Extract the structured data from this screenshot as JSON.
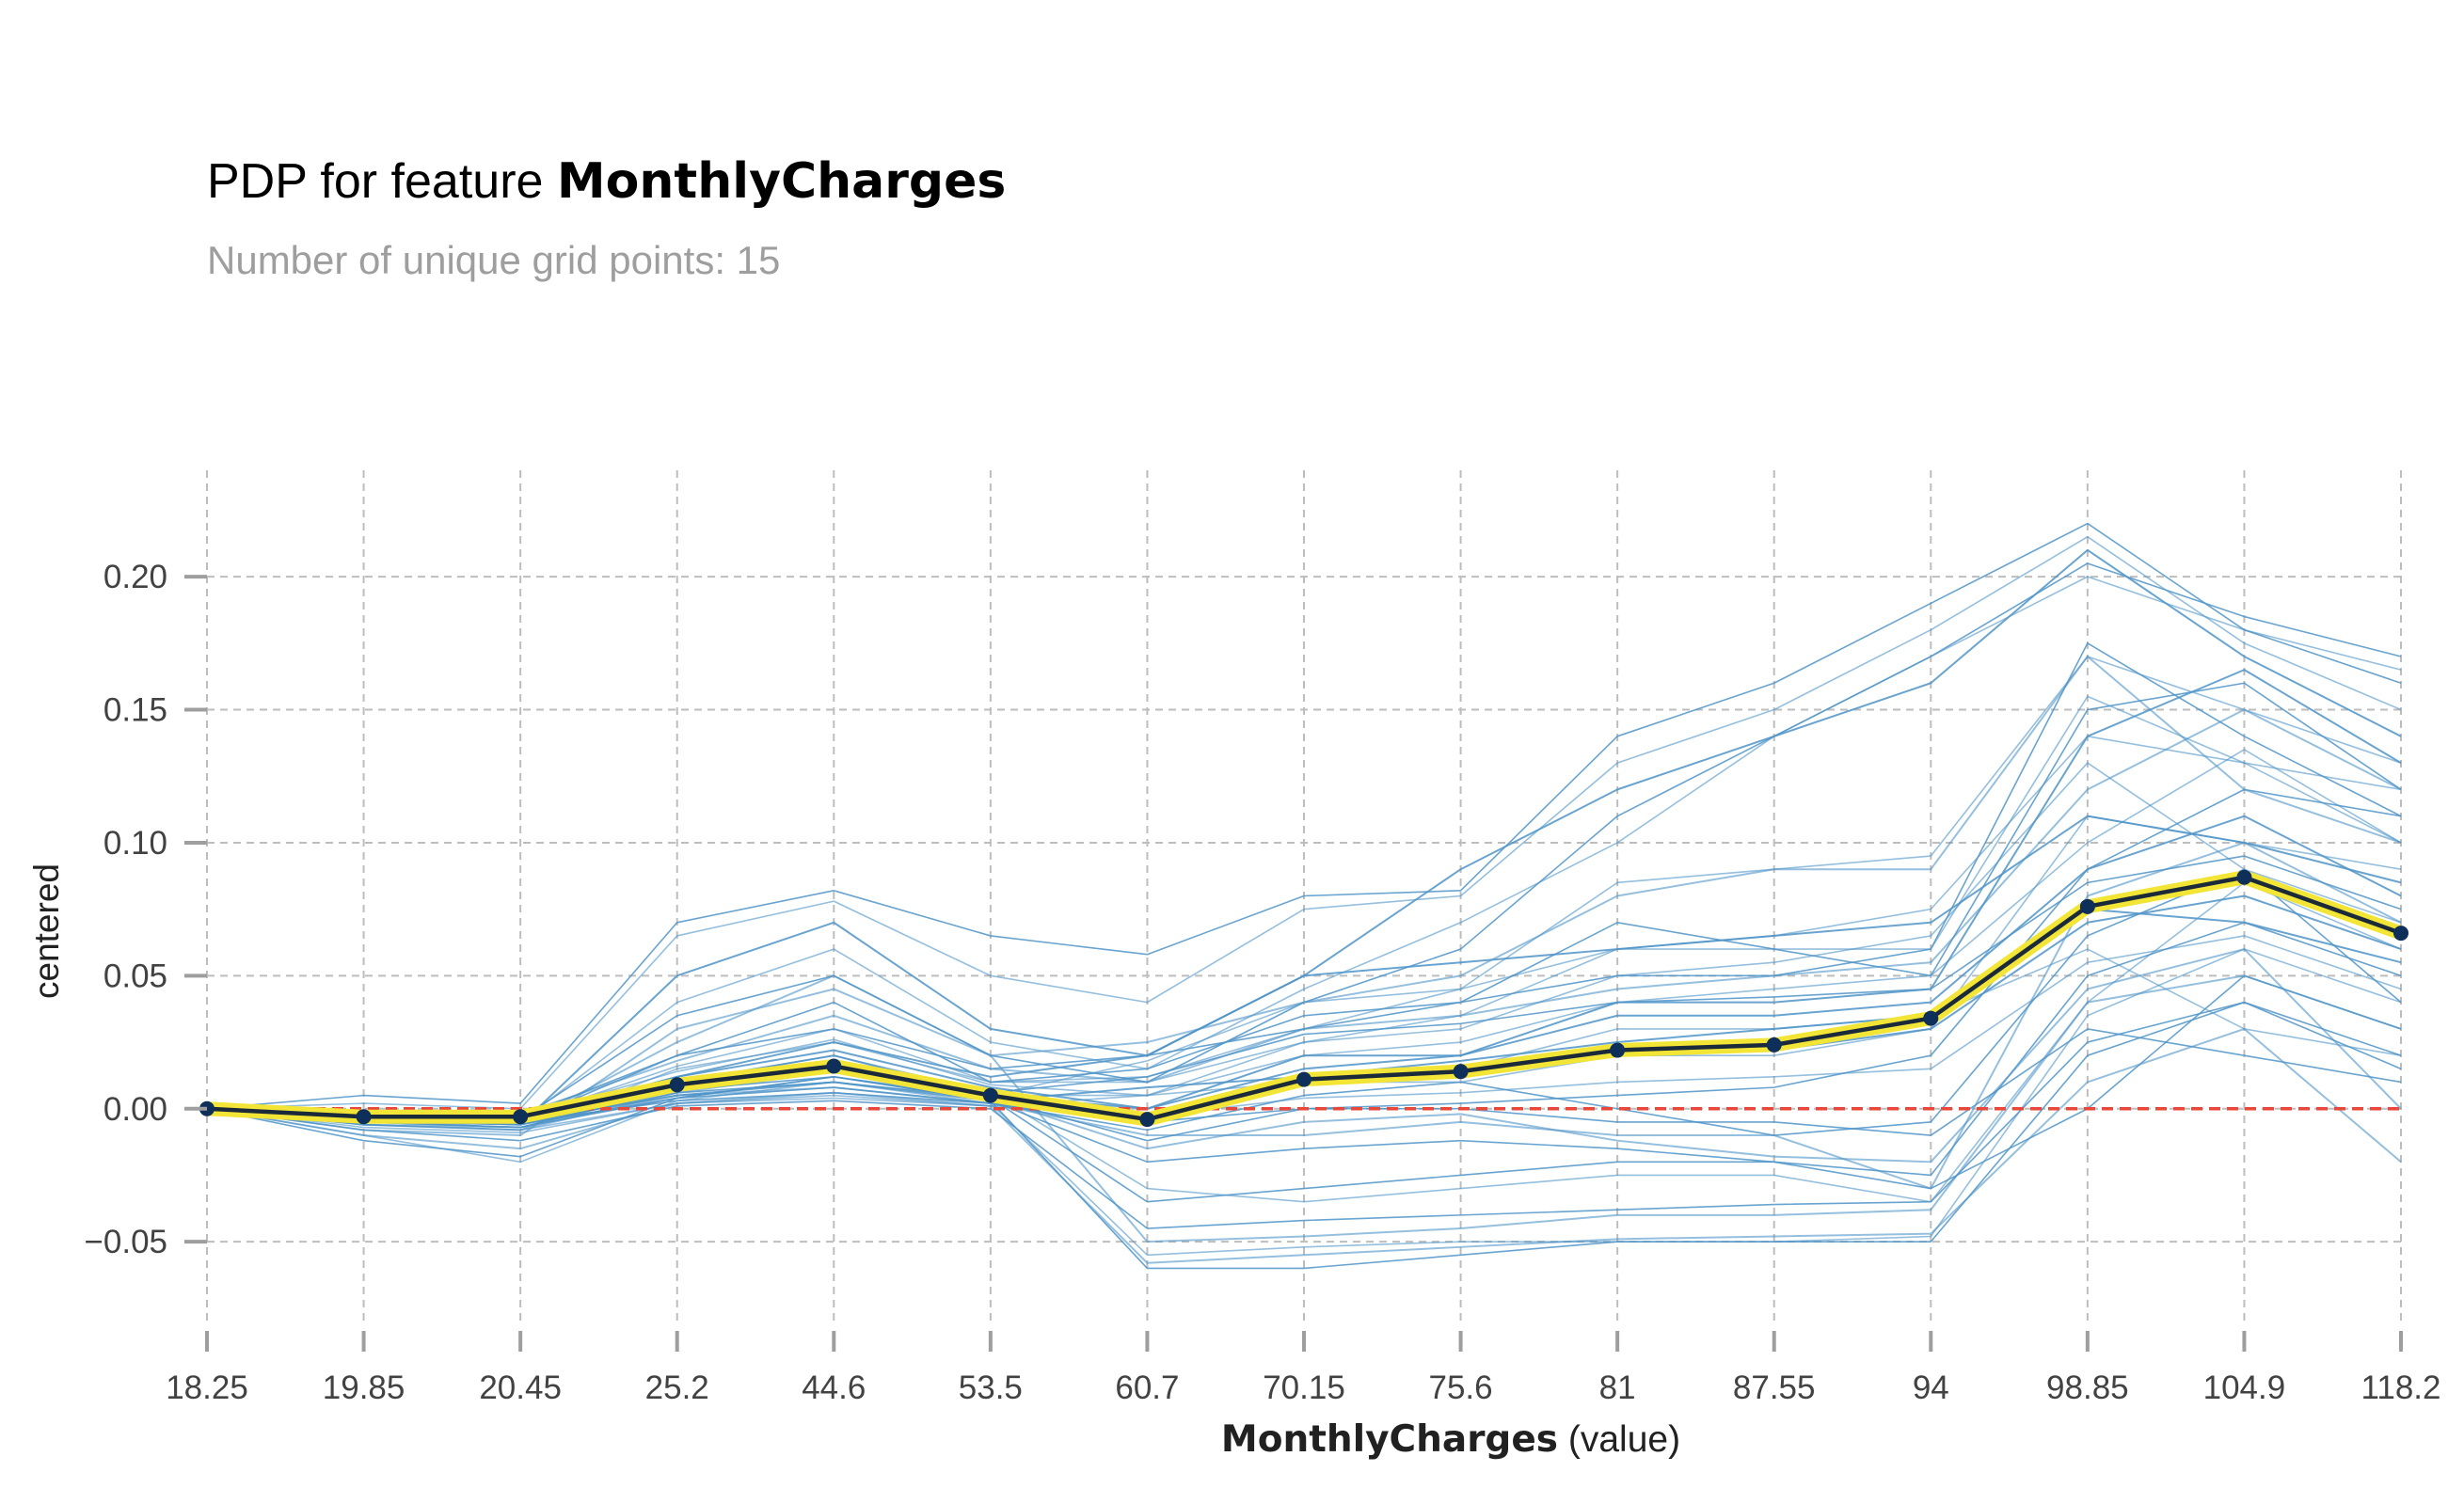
{
  "chart_data": {
    "type": "line",
    "title_prefix": "PDP for feature ",
    "title_feature": "MonthlyCharges",
    "subtitle": "Number of unique grid points: 15",
    "xlabel_bold": "MonthlyCharges",
    "xlabel_suffix": " (value)",
    "ylabel": "centered",
    "categories": [
      "18.25",
      "19.85",
      "20.45",
      "25.2",
      "44.6",
      "53.5",
      "60.7",
      "70.15",
      "75.6",
      "81",
      "87.55",
      "94",
      "98.85",
      "104.9",
      "118.2"
    ],
    "ylim": [
      -0.08,
      0.24
    ],
    "yticks": [
      -0.05,
      0.0,
      0.05,
      0.1,
      0.15,
      0.2
    ],
    "ytick_labels": [
      "−0.05",
      "0.00",
      "0.05",
      "0.10",
      "0.15",
      "0.20"
    ],
    "grid": true,
    "series": [
      {
        "role": "pdp",
        "values": [
          0.0,
          -0.003,
          -0.003,
          0.009,
          0.016,
          0.005,
          -0.004,
          0.011,
          0.014,
          0.022,
          0.024,
          0.034,
          0.076,
          0.087,
          0.066
        ]
      },
      {
        "role": "reference",
        "values": [
          0,
          0,
          0,
          0,
          0,
          0,
          0,
          0,
          0,
          0,
          0,
          0,
          0,
          0,
          0
        ]
      }
    ],
    "ice_lines": [
      [
        0,
        -0.005,
        -0.005,
        0.008,
        0.015,
        0.004,
        -0.002,
        0.012,
        0.015,
        0.02,
        0.022,
        0.03,
        0.07,
        0.08,
        0.06
      ],
      [
        0,
        -0.01,
        -0.02,
        0.003,
        0.01,
        0.002,
        -0.055,
        -0.052,
        -0.05,
        -0.05,
        -0.05,
        -0.048,
        0.035,
        0.06,
        0.04
      ],
      [
        0,
        -0.012,
        -0.018,
        0.004,
        0.012,
        0.003,
        -0.06,
        -0.06,
        -0.055,
        -0.05,
        -0.05,
        -0.05,
        0.02,
        0.04,
        0.02
      ],
      [
        0,
        -0.008,
        -0.01,
        0.03,
        0.045,
        0.02,
        -0.05,
        -0.048,
        -0.045,
        -0.04,
        -0.04,
        -0.038,
        0.04,
        0.05,
        0.03
      ],
      [
        0,
        0.005,
        0.002,
        0.07,
        0.082,
        0.065,
        0.058,
        0.08,
        0.082,
        0.14,
        0.16,
        0.19,
        0.22,
        0.18,
        0.16
      ],
      [
        0,
        0.002,
        0.0,
        0.065,
        0.078,
        0.05,
        0.04,
        0.075,
        0.08,
        0.13,
        0.15,
        0.18,
        0.215,
        0.175,
        0.15
      ],
      [
        0,
        -0.004,
        -0.006,
        0.05,
        0.07,
        0.03,
        0.02,
        0.05,
        0.09,
        0.12,
        0.14,
        0.16,
        0.21,
        0.17,
        0.14
      ],
      [
        0,
        -0.003,
        -0.005,
        0.04,
        0.06,
        0.025,
        0.015,
        0.045,
        0.07,
        0.1,
        0.14,
        0.17,
        0.2,
        0.18,
        0.165
      ],
      [
        0,
        -0.002,
        -0.004,
        0.035,
        0.05,
        0.02,
        0.01,
        0.04,
        0.06,
        0.11,
        0.14,
        0.17,
        0.205,
        0.185,
        0.17
      ],
      [
        0,
        -0.003,
        -0.006,
        0.025,
        0.05,
        0.02,
        0.025,
        0.04,
        0.05,
        0.08,
        0.09,
        0.09,
        0.17,
        0.12,
        0.1
      ],
      [
        0,
        -0.004,
        -0.005,
        0.02,
        0.03,
        0.015,
        0.02,
        0.03,
        0.04,
        0.07,
        0.06,
        0.05,
        0.15,
        0.16,
        0.12
      ],
      [
        0,
        -0.006,
        -0.008,
        0.015,
        0.025,
        0.01,
        0.01,
        0.025,
        0.035,
        0.06,
        0.06,
        0.06,
        0.155,
        0.13,
        0.1
      ],
      [
        0,
        -0.002,
        -0.003,
        0.01,
        0.02,
        0.005,
        0.0,
        0.02,
        0.02,
        0.04,
        0.04,
        0.045,
        0.14,
        0.165,
        0.13
      ],
      [
        0,
        -0.003,
        -0.004,
        0.008,
        0.018,
        0.006,
        -0.005,
        0.01,
        0.01,
        0.02,
        0.02,
        0.03,
        0.11,
        0.1,
        0.09
      ],
      [
        0,
        -0.004,
        -0.006,
        0.006,
        0.01,
        0.004,
        -0.012,
        0.0,
        0.002,
        0.005,
        0.008,
        0.02,
        0.09,
        0.12,
        0.11
      ],
      [
        0,
        -0.006,
        -0.007,
        0.005,
        0.008,
        0.002,
        -0.01,
        -0.01,
        -0.005,
        -0.01,
        -0.01,
        -0.03,
        0.08,
        0.1,
        0.07
      ],
      [
        0,
        -0.005,
        -0.006,
        0.004,
        0.012,
        0.003,
        -0.02,
        -0.015,
        -0.012,
        -0.015,
        -0.02,
        -0.03,
        0.0,
        0.05,
        0.03
      ],
      [
        0,
        -0.007,
        -0.009,
        0.002,
        0.005,
        0.001,
        0.005,
        0.01,
        0.015,
        0.03,
        0.03,
        0.035,
        0.06,
        0.03,
        0.02
      ],
      [
        0,
        -0.003,
        -0.004,
        0.012,
        0.022,
        0.008,
        0.0,
        0.015,
        0.02,
        0.035,
        0.035,
        0.04,
        0.09,
        0.11,
        0.08
      ],
      [
        0,
        -0.002,
        -0.003,
        0.014,
        0.026,
        0.009,
        0.005,
        0.02,
        0.025,
        0.04,
        0.045,
        0.05,
        0.1,
        0.135,
        0.1
      ],
      [
        0,
        -0.004,
        -0.005,
        0.003,
        0.006,
        0.002,
        -0.005,
        0.0,
        0.0,
        -0.005,
        -0.005,
        -0.01,
        0.03,
        0.02,
        0.01
      ],
      [
        0,
        -0.001,
        -0.002,
        0.018,
        0.035,
        0.015,
        0.01,
        0.03,
        0.035,
        0.045,
        0.05,
        0.055,
        0.12,
        0.15,
        0.12
      ],
      [
        0,
        -0.005,
        -0.007,
        0.007,
        0.012,
        0.004,
        -0.035,
        -0.03,
        -0.025,
        -0.02,
        -0.02,
        -0.025,
        0.05,
        0.07,
        0.05
      ],
      [
        0,
        -0.004,
        -0.006,
        0.01,
        0.02,
        0.006,
        -0.03,
        -0.035,
        -0.03,
        -0.025,
        -0.025,
        -0.035,
        0.04,
        0.085,
        0.06
      ],
      [
        0,
        -0.003,
        -0.004,
        0.012,
        0.025,
        0.012,
        0.02,
        0.05,
        0.055,
        0.06,
        0.065,
        0.07,
        0.11,
        0.1,
        0.085
      ],
      [
        0,
        -0.002,
        -0.002,
        0.009,
        0.016,
        0.005,
        0.005,
        0.025,
        0.03,
        0.05,
        0.055,
        0.065,
        0.13,
        0.09,
        0.07
      ],
      [
        0,
        -0.005,
        -0.007,
        0.004,
        0.008,
        0.002,
        -0.008,
        0.005,
        0.01,
        0.0,
        -0.01,
        -0.005,
        0.065,
        0.09,
        0.04
      ],
      [
        0,
        -0.006,
        -0.008,
        0.006,
        0.014,
        0.004,
        -0.015,
        -0.005,
        -0.002,
        -0.012,
        -0.018,
        -0.02,
        0.045,
        0.06,
        0.0
      ],
      [
        0,
        -0.002,
        -0.003,
        0.02,
        0.04,
        0.01,
        0.015,
        0.035,
        0.04,
        0.05,
        0.05,
        0.06,
        0.175,
        0.14,
        0.11
      ],
      [
        0,
        -0.003,
        -0.004,
        0.016,
        0.03,
        0.01,
        0.012,
        0.03,
        0.045,
        0.085,
        0.09,
        0.095,
        0.17,
        0.15,
        0.13
      ],
      [
        0,
        -0.004,
        -0.005,
        0.005,
        0.01,
        0.003,
        0.008,
        0.012,
        0.018,
        0.025,
        0.03,
        0.035,
        0.075,
        0.07,
        0.055
      ],
      [
        0,
        -0.006,
        -0.008,
        0.002,
        0.004,
        0.001,
        -0.003,
        0.004,
        0.006,
        0.01,
        0.012,
        0.015,
        0.055,
        0.065,
        0.045
      ],
      [
        0,
        -0.008,
        -0.012,
        0.001,
        0.003,
        0.0,
        -0.045,
        -0.042,
        -0.04,
        -0.038,
        -0.036,
        -0.035,
        0.025,
        0.04,
        0.015
      ],
      [
        0,
        -0.01,
        -0.015,
        0.002,
        0.006,
        0.001,
        -0.058,
        -0.055,
        -0.052,
        -0.049,
        -0.048,
        -0.047,
        0.01,
        0.03,
        -0.02
      ],
      [
        0,
        -0.003,
        -0.004,
        0.011,
        0.018,
        0.006,
        0.012,
        0.028,
        0.032,
        0.04,
        0.042,
        0.045,
        0.085,
        0.095,
        0.075
      ],
      [
        0,
        -0.002,
        -0.003,
        0.008,
        0.014,
        0.005,
        0.018,
        0.04,
        0.045,
        0.06,
        0.065,
        0.075,
        0.14,
        0.13,
        0.12
      ]
    ]
  },
  "colors": {
    "ice_line": "#4f94c8",
    "pdp_line": "#1a2a3a",
    "pdp_halo": "#f2e535",
    "pdp_marker": "#0d2f5a",
    "reference_line": "#e8473a",
    "grid": "#bdbdbd"
  }
}
